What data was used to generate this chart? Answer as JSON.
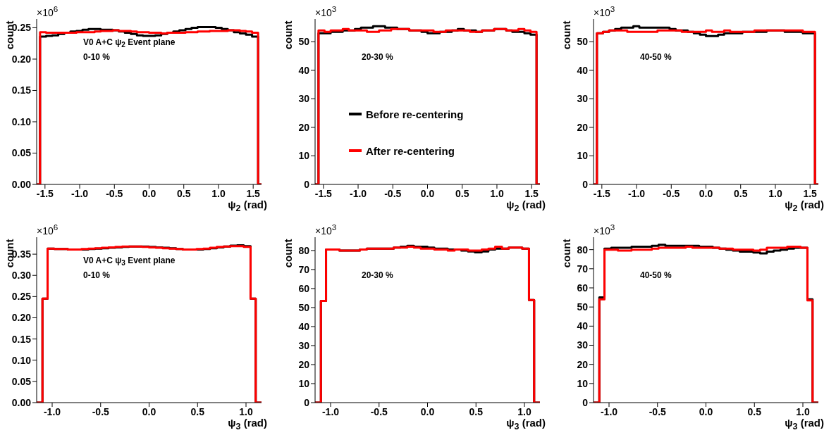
{
  "chart_data": [
    {
      "type": "histogram",
      "xlabel": "ψ$_{2}$ (rad)",
      "ylabel": "count",
      "annotations": [
        "×10$^{6}$",
        "V0 A+C ψ$_{2}$ Event plane",
        "0-10 %"
      ],
      "legend": false,
      "bins": [
        -1.62,
        -1.571,
        -1.484,
        -1.396,
        -1.309,
        -1.222,
        -1.134,
        -1.047,
        -0.96,
        -0.873,
        -0.785,
        -0.698,
        -0.611,
        -0.524,
        -0.436,
        -0.349,
        -0.262,
        -0.175,
        -0.087,
        0,
        0.087,
        0.175,
        0.262,
        0.349,
        0.436,
        0.524,
        0.611,
        0.698,
        0.785,
        0.873,
        0.96,
        1.047,
        1.134,
        1.222,
        1.309,
        1.396,
        1.484,
        1.571,
        1.62
      ],
      "xlim": [
        -1.62,
        1.62
      ],
      "xticks": [
        -1.5,
        {
          "value": -1,
          "label": "-1.0"
        },
        -0.5,
        {
          "value": 0,
          "label": "0.0"
        },
        0.5,
        {
          "value": 1,
          "label": "1.0"
        },
        1.5
      ],
      "ylim": [
        0,
        0.264
      ],
      "yticks": [
        {
          "value": 0,
          "label": "0.00"
        },
        0.05,
        {
          "value": 0.1,
          "label": "0.10"
        },
        0.15,
        {
          "value": 0.2,
          "label": "0.20"
        },
        0.25
      ],
      "series": [
        {
          "color": "#000000",
          "values": [
            0,
            0.236,
            0.237,
            0.238,
            0.24,
            0.242,
            0.244,
            0.245,
            0.247,
            0.248,
            0.248,
            0.247,
            0.247,
            0.246,
            0.244,
            0.242,
            0.24,
            0.238,
            0.237,
            0.237,
            0.238,
            0.24,
            0.242,
            0.244,
            0.246,
            0.248,
            0.25,
            0.251,
            0.251,
            0.251,
            0.25,
            0.248,
            0.246,
            0.243,
            0.241,
            0.239,
            0.236,
            0
          ]
        },
        {
          "color": "#ff0000",
          "values": [
            0,
            0.243,
            0.242,
            0.242,
            0.242,
            0.242,
            0.242,
            0.243,
            0.243,
            0.243,
            0.244,
            0.245,
            0.245,
            0.246,
            0.245,
            0.245,
            0.244,
            0.243,
            0.243,
            0.242,
            0.242,
            0.241,
            0.242,
            0.242,
            0.242,
            0.243,
            0.243,
            0.244,
            0.244,
            0.245,
            0.245,
            0.245,
            0.246,
            0.246,
            0.245,
            0.244,
            0.242,
            0
          ]
        }
      ]
    },
    {
      "type": "histogram",
      "xlabel": "ψ$_{2}$ (rad)",
      "ylabel": "count",
      "annotations": [
        "×10$^{3}$",
        "20-30 %"
      ],
      "legend": "left",
      "bins": [
        -1.62,
        -1.571,
        -1.484,
        -1.396,
        -1.309,
        -1.222,
        -1.134,
        -1.047,
        -0.96,
        -0.873,
        -0.785,
        -0.698,
        -0.611,
        -0.524,
        -0.436,
        -0.349,
        -0.262,
        -0.175,
        -0.087,
        0,
        0.087,
        0.175,
        0.262,
        0.349,
        0.436,
        0.524,
        0.611,
        0.698,
        0.785,
        0.873,
        0.96,
        1.047,
        1.134,
        1.222,
        1.309,
        1.396,
        1.484,
        1.571,
        1.62
      ],
      "xlim": [
        -1.62,
        1.62
      ],
      "xticks": [
        -1.5,
        {
          "value": -1,
          "label": "-1.0"
        },
        -0.5,
        {
          "value": 0,
          "label": "0.0"
        },
        0.5,
        {
          "value": 1,
          "label": "1.0"
        },
        1.5
      ],
      "ylim": [
        0,
        58
      ],
      "yticks": [
        0,
        10,
        20,
        30,
        40,
        50
      ],
      "series": [
        {
          "name": "Before re-centering",
          "color": "#000000",
          "values": [
            0,
            53,
            53,
            53.5,
            53.5,
            54,
            54,
            54.5,
            55,
            55,
            55.5,
            55.5,
            55,
            55,
            54.5,
            54.5,
            54,
            54,
            53.5,
            53,
            53,
            53.5,
            53.5,
            54,
            54.5,
            54,
            54,
            53.5,
            54,
            54,
            54.5,
            54.5,
            54,
            53.5,
            53.5,
            53,
            52.5,
            0
          ]
        },
        {
          "name": "After re-centering",
          "color": "#ff0000",
          "values": [
            0,
            54,
            53.5,
            54,
            54,
            54.5,
            54,
            54,
            54,
            53.5,
            53.5,
            54,
            54,
            54.5,
            54.5,
            54.5,
            54,
            54,
            54,
            54,
            53.5,
            53.5,
            54,
            54,
            54,
            54,
            53.5,
            53.5,
            54,
            54,
            54.5,
            54.5,
            54,
            54,
            54.5,
            54,
            53.5,
            0
          ]
        }
      ]
    },
    {
      "type": "histogram",
      "xlabel": "ψ$_{2}$ (rad)",
      "ylabel": "count",
      "annotations": [
        "×10$^{3}$",
        "40-50 %"
      ],
      "legend": false,
      "bins": [
        -1.62,
        -1.571,
        -1.484,
        -1.396,
        -1.309,
        -1.222,
        -1.134,
        -1.047,
        -0.96,
        -0.873,
        -0.785,
        -0.698,
        -0.611,
        -0.524,
        -0.436,
        -0.349,
        -0.262,
        -0.175,
        -0.087,
        0,
        0.087,
        0.175,
        0.262,
        0.349,
        0.436,
        0.524,
        0.611,
        0.698,
        0.785,
        0.873,
        0.96,
        1.047,
        1.134,
        1.222,
        1.309,
        1.396,
        1.484,
        1.571,
        1.62
      ],
      "xlim": [
        -1.62,
        1.62
      ],
      "xticks": [
        -1.5,
        {
          "value": -1,
          "label": "-1.0"
        },
        -0.5,
        {
          "value": 0,
          "label": "0.0"
        },
        0.5,
        {
          "value": 1,
          "label": "1.0"
        },
        1.5
      ],
      "ylim": [
        0,
        58
      ],
      "yticks": [
        0,
        10,
        20,
        30,
        40,
        50
      ],
      "series": [
        {
          "color": "#000000",
          "values": [
            0,
            53,
            53.5,
            54,
            54.5,
            55,
            55,
            55.5,
            55,
            55,
            55,
            55,
            55,
            54.5,
            54,
            54,
            53.5,
            53,
            52.5,
            52,
            52,
            52.5,
            53,
            53,
            53,
            53.5,
            53.5,
            53.5,
            53.5,
            54,
            54,
            54,
            53.5,
            53.5,
            53.5,
            53,
            53,
            0
          ]
        },
        {
          "color": "#ff0000",
          "values": [
            0,
            53,
            53.5,
            54,
            54,
            54,
            53.5,
            53.5,
            53.5,
            53.5,
            53.5,
            54,
            54,
            54,
            54,
            53.5,
            53.5,
            53.5,
            53.5,
            54,
            53.5,
            53.5,
            54,
            53.5,
            53.5,
            53.5,
            53.5,
            54,
            54,
            54,
            54,
            54,
            54,
            54,
            54,
            53.5,
            53.5,
            0
          ]
        }
      ]
    },
    {
      "type": "histogram",
      "xlabel": "ψ$_{3}$ (rad)",
      "ylabel": "count",
      "annotations": [
        "×10$^{6}$",
        "V0 A+C ψ$_{3}$ Event plane",
        "0-10 %"
      ],
      "legend": false,
      "bins": [
        -1.16,
        -1.1,
        -1.047,
        -0.977,
        -0.908,
        -0.838,
        -0.768,
        -0.698,
        -0.628,
        -0.559,
        -0.489,
        -0.419,
        -0.349,
        -0.279,
        -0.209,
        -0.14,
        -0.07,
        0,
        0.07,
        0.14,
        0.209,
        0.279,
        0.349,
        0.419,
        0.489,
        0.559,
        0.628,
        0.698,
        0.768,
        0.838,
        0.908,
        0.977,
        1.047,
        1.1,
        1.16
      ],
      "xlim": [
        -1.16,
        1.16
      ],
      "xticks": [
        {
          "value": -1,
          "label": "-1.0"
        },
        -0.5,
        {
          "value": 0,
          "label": "0.0"
        },
        0.5,
        {
          "value": 1,
          "label": "1.0"
        }
      ],
      "ylim": [
        0,
        0.39
      ],
      "yticks": [
        {
          "value": 0,
          "label": "0.00"
        },
        0.05,
        {
          "value": 0.1,
          "label": "0.10"
        },
        0.15,
        {
          "value": 0.2,
          "label": "0.20"
        },
        0.25,
        {
          "value": 0.3,
          "label": "0.30"
        },
        0.35
      ],
      "series": [
        {
          "color": "#000000",
          "values": [
            0,
            0.245,
            0.363,
            0.362,
            0.362,
            0.361,
            0.361,
            0.361,
            0.362,
            0.363,
            0.364,
            0.365,
            0.366,
            0.367,
            0.368,
            0.368,
            0.368,
            0.367,
            0.366,
            0.365,
            0.364,
            0.362,
            0.361,
            0.361,
            0.361,
            0.362,
            0.364,
            0.366,
            0.368,
            0.37,
            0.371,
            0.369,
            0.245,
            0
          ]
        },
        {
          "color": "#ff0000",
          "values": [
            0,
            0.245,
            0.363,
            0.362,
            0.362,
            0.361,
            0.361,
            0.362,
            0.363,
            0.364,
            0.365,
            0.366,
            0.367,
            0.368,
            0.368,
            0.368,
            0.367,
            0.366,
            0.365,
            0.364,
            0.363,
            0.362,
            0.361,
            0.361,
            0.362,
            0.363,
            0.365,
            0.367,
            0.368,
            0.369,
            0.369,
            0.367,
            0.245,
            0
          ]
        }
      ]
    },
    {
      "type": "histogram",
      "xlabel": "ψ$_{3}$ (rad)",
      "ylabel": "count",
      "annotations": [
        "×10$^{3}$",
        "20-30 %"
      ],
      "legend": false,
      "bins": [
        -1.16,
        -1.1,
        -1.047,
        -0.977,
        -0.908,
        -0.838,
        -0.768,
        -0.698,
        -0.628,
        -0.559,
        -0.489,
        -0.419,
        -0.349,
        -0.279,
        -0.209,
        -0.14,
        -0.07,
        0,
        0.07,
        0.14,
        0.209,
        0.279,
        0.349,
        0.419,
        0.489,
        0.559,
        0.628,
        0.698,
        0.768,
        0.838,
        0.908,
        0.977,
        1.047,
        1.1,
        1.16
      ],
      "xlim": [
        -1.16,
        1.16
      ],
      "xticks": [
        {
          "value": -1,
          "label": "-1.0"
        },
        -0.5,
        {
          "value": 0,
          "label": "0.0"
        },
        0.5,
        {
          "value": 1,
          "label": "1.0"
        }
      ],
      "ylim": [
        0,
        87
      ],
      "yticks": [
        0,
        10,
        20,
        30,
        40,
        50,
        60,
        70,
        80
      ],
      "series": [
        {
          "color": "#000000",
          "values": [
            0,
            53.5,
            80.5,
            80.5,
            80,
            80,
            80,
            80.5,
            81,
            81,
            81,
            81,
            81.5,
            82,
            82.5,
            82,
            82,
            81.5,
            81,
            81,
            80.5,
            80.5,
            80,
            79.5,
            79,
            79.5,
            80.5,
            81,
            81,
            81.5,
            81.5,
            81,
            54,
            0
          ]
        },
        {
          "color": "#ff0000",
          "values": [
            0,
            53.5,
            80.5,
            80.5,
            80,
            80,
            80,
            80.5,
            81,
            81,
            81,
            81,
            81.5,
            81.5,
            82,
            81.5,
            81,
            81,
            80.5,
            80.5,
            80,
            80.5,
            80.5,
            80,
            80,
            80.5,
            81,
            82,
            81,
            81.5,
            81.5,
            81,
            54,
            0
          ]
        }
      ]
    },
    {
      "type": "histogram",
      "xlabel": "ψ$_{3}$ (rad)",
      "ylabel": "count",
      "annotations": [
        "×10$^{3}$",
        "40-50 %"
      ],
      "legend": false,
      "bins": [
        -1.16,
        -1.1,
        -1.047,
        -0.977,
        -0.908,
        -0.838,
        -0.768,
        -0.698,
        -0.628,
        -0.559,
        -0.489,
        -0.419,
        -0.349,
        -0.279,
        -0.209,
        -0.14,
        -0.07,
        0,
        0.07,
        0.14,
        0.209,
        0.279,
        0.349,
        0.419,
        0.489,
        0.559,
        0.628,
        0.698,
        0.768,
        0.838,
        0.908,
        0.977,
        1.047,
        1.1,
        1.16
      ],
      "xlim": [
        -1.16,
        1.16
      ],
      "xticks": [
        {
          "value": -1,
          "label": "-1.0"
        },
        -0.5,
        {
          "value": 0,
          "label": "0.0"
        },
        0.5,
        {
          "value": 1,
          "label": "1.0"
        }
      ],
      "ylim": [
        0,
        86.5
      ],
      "yticks": [
        0,
        10,
        20,
        30,
        40,
        50,
        60,
        70,
        80
      ],
      "series": [
        {
          "color": "#000000",
          "values": [
            0,
            55,
            80.5,
            81,
            81,
            81,
            81.5,
            81.5,
            81.5,
            82,
            82.5,
            82,
            82,
            82,
            82,
            82,
            81.5,
            81.5,
            81,
            80.5,
            80,
            79.5,
            79,
            79,
            78.5,
            78,
            79,
            79.5,
            80,
            80.5,
            81,
            81,
            54,
            0
          ]
        },
        {
          "color": "#ff0000",
          "values": [
            0,
            54,
            80,
            80,
            79.5,
            79.5,
            80,
            80,
            80,
            80.5,
            81,
            81,
            81,
            81,
            81.5,
            81,
            81,
            81,
            81,
            80.5,
            80.5,
            80,
            80,
            80,
            79.5,
            80,
            81,
            81,
            81,
            81.5,
            81.5,
            81,
            53.5,
            0
          ]
        }
      ]
    }
  ]
}
